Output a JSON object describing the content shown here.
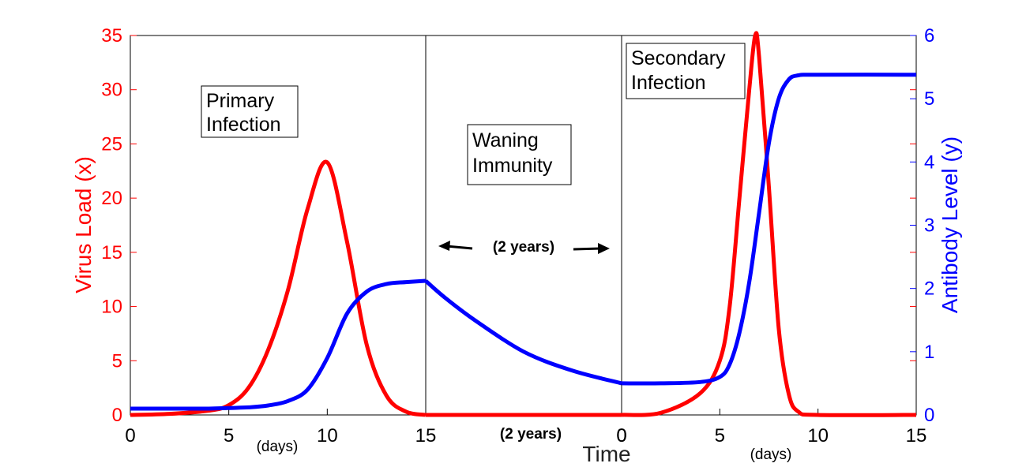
{
  "chart_data": {
    "type": "line",
    "xlabel": "Time",
    "ylabel_left": "Virus Load (x)",
    "ylabel_right": "Antibody Level (y)",
    "ylim_left": [
      0,
      35
    ],
    "ylim_right": [
      0,
      6
    ],
    "left_ticks": [
      "0",
      "5",
      "10",
      "15",
      "20",
      "25",
      "30",
      "35"
    ],
    "right_ticks": [
      "0",
      "1",
      "2",
      "3",
      "4",
      "5",
      "6"
    ],
    "segments": [
      {
        "name": "primary",
        "x_ticks": [
          "0",
          "5",
          "10",
          "15"
        ],
        "unit_label": "(days)"
      },
      {
        "name": "waning",
        "x_ticks": [
          "15",
          "0"
        ],
        "unit_label": "(2 years)"
      },
      {
        "name": "secondary",
        "x_ticks": [
          "0",
          "5",
          "10",
          "15"
        ],
        "unit_label": "(days)"
      }
    ],
    "annotations": {
      "primary_line1": "Primary",
      "primary_line2": "Infection",
      "waning_line1": "Waning",
      "waning_line2": "Immunity",
      "secondary_line1": "Secondary",
      "secondary_line2": "Infection",
      "duration_arrow": "(2 years)"
    },
    "series": [
      {
        "name": "Virus Load (x)",
        "axis": "left",
        "color": "#ff0000",
        "primary": {
          "t": [
            0,
            2,
            4,
            5,
            6,
            7,
            8,
            9,
            10,
            11,
            12,
            13,
            14,
            15
          ],
          "v": [
            0,
            0.1,
            0.4,
            0.9,
            2.5,
            6,
            11.5,
            19,
            23.3,
            16,
            6.5,
            1.8,
            0.3,
            0
          ]
        },
        "waning": {
          "t": [
            0,
            1
          ],
          "v": [
            0,
            0
          ]
        },
        "secondary": {
          "t": [
            0,
            2,
            4,
            5,
            5.5,
            6,
            6.5,
            6.8,
            7,
            7.5,
            8,
            8.5,
            9,
            10,
            15
          ],
          "v": [
            0,
            0.2,
            2,
            5,
            10,
            20,
            30,
            35,
            33,
            21,
            8,
            2,
            0.3,
            0,
            0
          ]
        }
      },
      {
        "name": "Antibody Level (y)",
        "axis": "right",
        "color": "#0000ff",
        "primary": {
          "t": [
            0,
            2,
            4,
            5,
            6,
            7,
            8,
            9,
            10,
            11,
            12,
            13,
            14,
            15
          ],
          "v": [
            0.1,
            0.1,
            0.1,
            0.11,
            0.12,
            0.15,
            0.22,
            0.4,
            0.9,
            1.6,
            1.95,
            2.07,
            2.1,
            2.12
          ]
        },
        "waning": {
          "t": [
            0,
            0.1,
            0.25,
            0.5,
            0.75,
            1
          ],
          "v": [
            2.12,
            1.85,
            1.5,
            1.0,
            0.7,
            0.5
          ]
        },
        "secondary": {
          "t": [
            0,
            2,
            4,
            5,
            5.5,
            6,
            6.5,
            7,
            7.5,
            8,
            8.5,
            9,
            10,
            15
          ],
          "v": [
            0.5,
            0.5,
            0.52,
            0.6,
            0.8,
            1.3,
            2.1,
            3.2,
            4.3,
            5.0,
            5.3,
            5.37,
            5.38,
            5.38
          ]
        }
      }
    ]
  }
}
